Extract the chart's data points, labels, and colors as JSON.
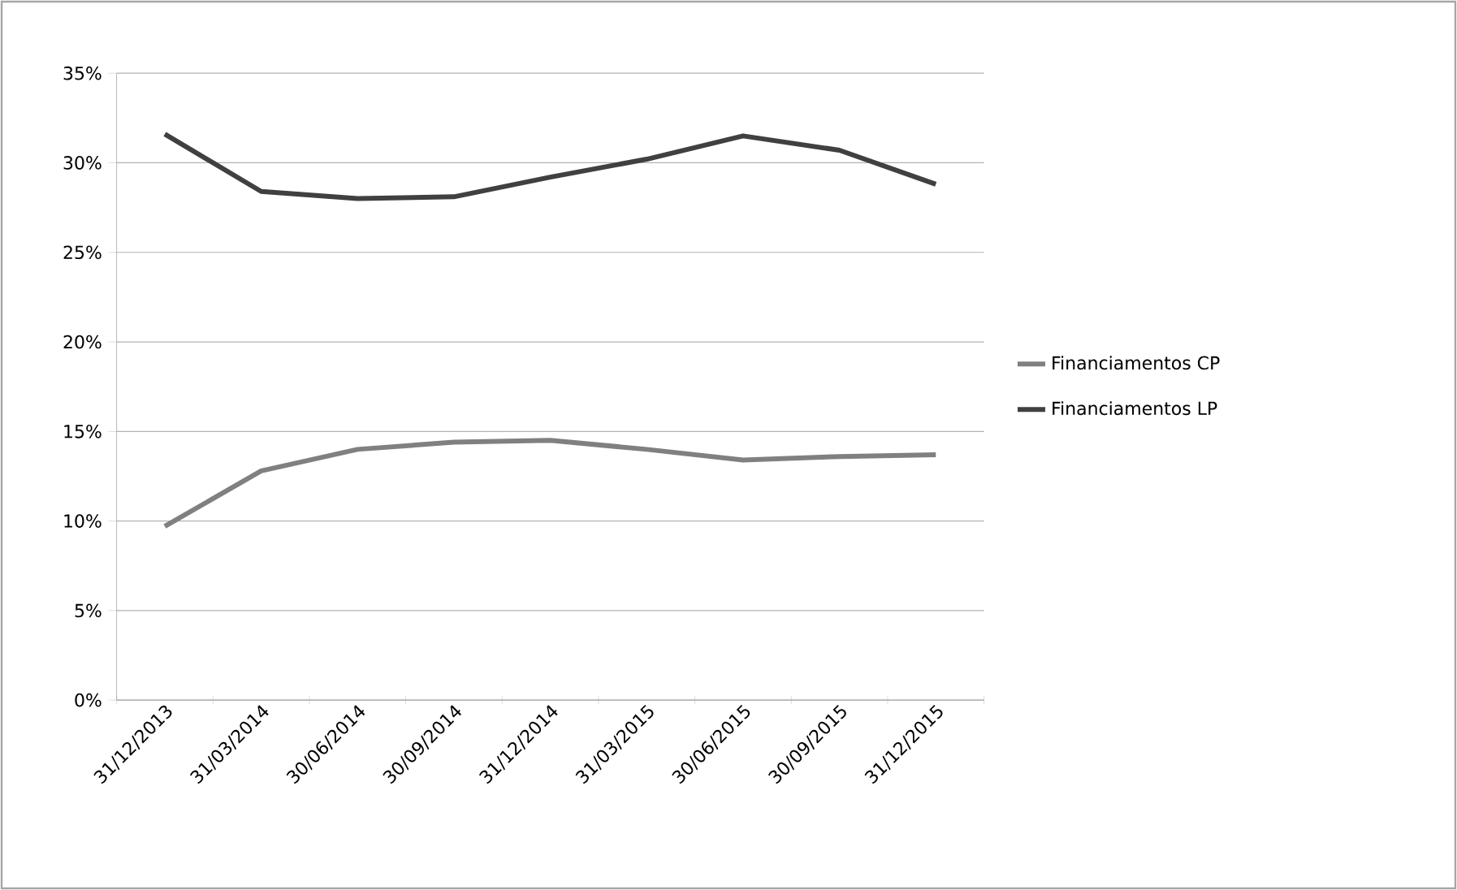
{
  "chart_data": {
    "type": "line",
    "categories": [
      "31/12/2013",
      "31/03/2014",
      "30/06/2014",
      "30/09/2014",
      "31/12/2014",
      "31/03/2015",
      "30/06/2015",
      "30/09/2015",
      "31/12/2015"
    ],
    "series": [
      {
        "name": "Financiamentos CP",
        "color": "#808080",
        "values": [
          9.7,
          12.8,
          14.0,
          14.4,
          14.5,
          14.0,
          13.4,
          13.6,
          13.7
        ]
      },
      {
        "name": "Financiamentos LP",
        "color": "#404040",
        "values": [
          31.6,
          28.4,
          28.0,
          28.1,
          29.2,
          30.2,
          31.5,
          30.7,
          28.8
        ]
      }
    ],
    "ylim": [
      0,
      35
    ],
    "yticks": [
      {
        "value": 0,
        "label": "0%"
      },
      {
        "value": 5,
        "label": "5%"
      },
      {
        "value": 10,
        "label": "10%"
      },
      {
        "value": 15,
        "label": "15%"
      },
      {
        "value": 20,
        "label": "20%"
      },
      {
        "value": 25,
        "label": "25%"
      },
      {
        "value": 30,
        "label": "30%"
      },
      {
        "value": 35,
        "label": "35%"
      }
    ],
    "grid": "y",
    "legend": "right",
    "marker": "none",
    "line_style": "solid"
  }
}
